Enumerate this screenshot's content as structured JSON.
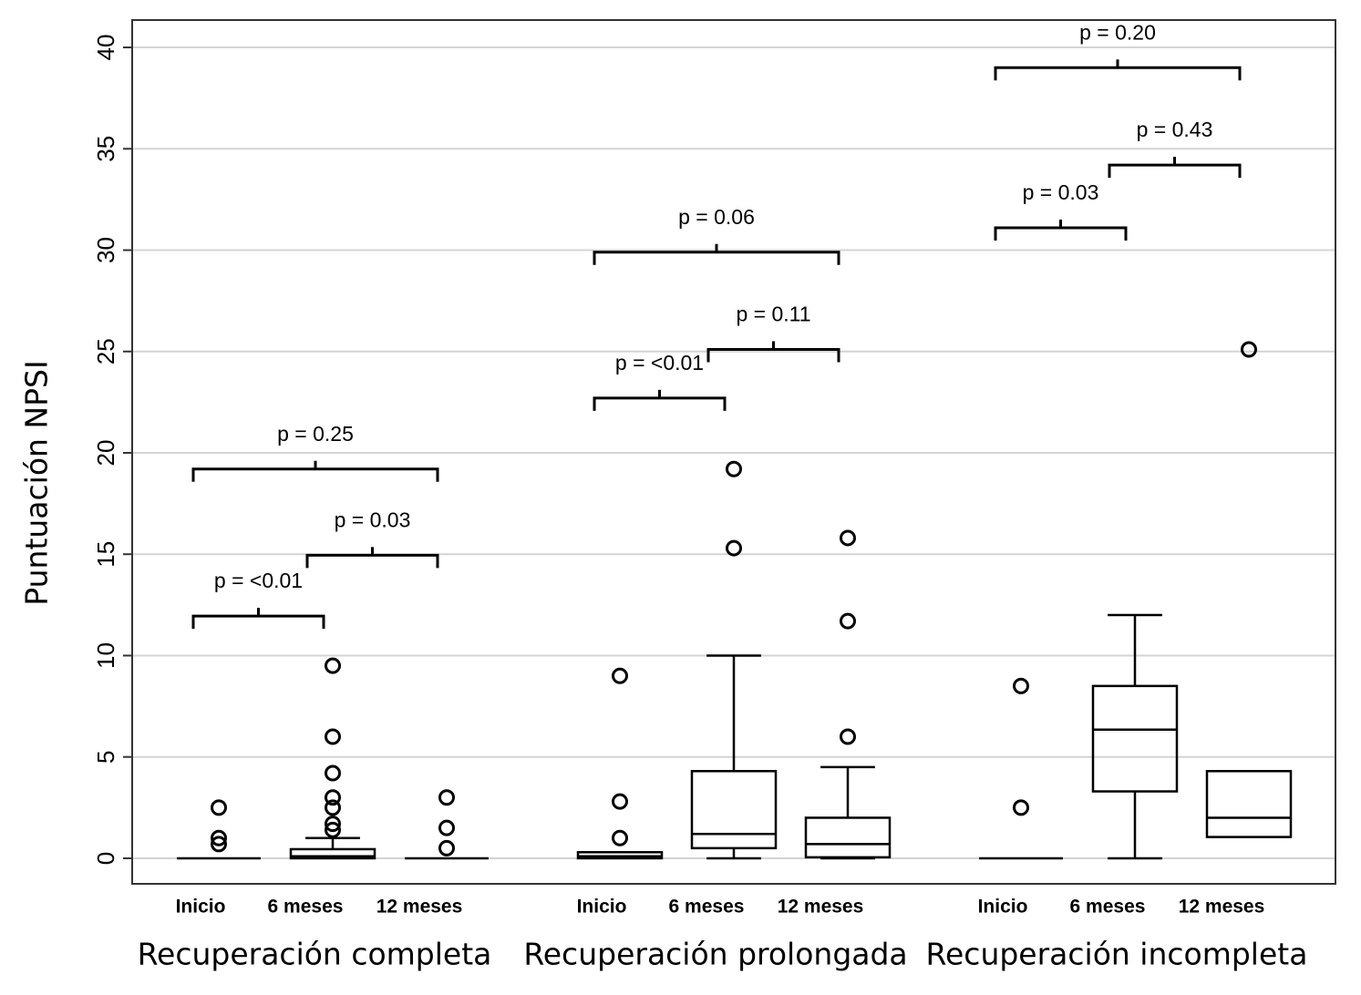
{
  "chart_data": {
    "type": "box",
    "y_label": "Puntuación NPSI",
    "ylim": [
      -1.26,
      41.35
    ],
    "yticks": [
      0,
      5,
      10,
      15,
      20,
      25,
      30,
      35,
      40
    ],
    "grid": true,
    "color": "#000000",
    "groups": [
      {
        "name": "Recuperación completa",
        "boxes": [
          {
            "name": "Inicio",
            "q1": 0,
            "median": 0,
            "q3": 0,
            "whisker_low": 0,
            "whisker_high": 0,
            "outliers": [
              2.5,
              1.0,
              0.7
            ]
          },
          {
            "name": "6 meses",
            "q1": 0,
            "median": 0.1,
            "q3": 0.45,
            "whisker_low": 0,
            "whisker_high": 1.0,
            "outliers": [
              9.5,
              6.0,
              4.2,
              3.0,
              2.5,
              1.7,
              1.4
            ]
          },
          {
            "name": "12 meses",
            "q1": 0,
            "median": 0,
            "q3": 0,
            "whisker_low": 0,
            "whisker_high": 0,
            "outliers": [
              3.0,
              1.5,
              0.5
            ]
          }
        ],
        "comparisons": [
          {
            "between": [
              "Inicio",
              "6 meses"
            ],
            "y": 11.95,
            "label": "p = <0.01"
          },
          {
            "between": [
              "6 meses",
              "12 meses"
            ],
            "y": 14.95,
            "label": "p = 0.03"
          },
          {
            "between": [
              "Inicio",
              "12 meses"
            ],
            "y": 19.2,
            "label": "p = 0.25"
          }
        ]
      },
      {
        "name": "Recuperación prolongada",
        "boxes": [
          {
            "name": "Inicio",
            "q1": 0,
            "median": 0.1,
            "q3": 0.3,
            "whisker_low": 0,
            "whisker_high": 0.3,
            "outliers": [
              9.0,
              2.8,
              1.0
            ]
          },
          {
            "name": "6 meses",
            "q1": 0.5,
            "median": 1.2,
            "q3": 4.3,
            "whisker_low": 0,
            "whisker_high": 10,
            "outliers": [
              19.2,
              15.3
            ]
          },
          {
            "name": "12 meses",
            "q1": 0.05,
            "median": 0.7,
            "q3": 2.0,
            "whisker_low": 0,
            "whisker_high": 4.5,
            "outliers": [
              15.8,
              11.7,
              6.0
            ]
          }
        ],
        "comparisons": [
          {
            "between": [
              "Inicio",
              "6 meses"
            ],
            "y": 22.7,
            "label": "p = <0.01"
          },
          {
            "between": [
              "6 meses",
              "12 meses"
            ],
            "y": 25.1,
            "label": "p = 0.11"
          },
          {
            "between": [
              "Inicio",
              "12 meses"
            ],
            "y": 29.9,
            "label": "p = 0.06"
          }
        ]
      },
      {
        "name": "Recuperación incompleta",
        "boxes": [
          {
            "name": "Inicio",
            "q1": 0,
            "median": 0,
            "q3": 0,
            "whisker_low": 0,
            "whisker_high": 0,
            "outliers": [
              8.5,
              2.5
            ]
          },
          {
            "name": "6 meses",
            "q1": 3.3,
            "median": 6.35,
            "q3": 8.5,
            "whisker_low": 0,
            "whisker_high": 12,
            "outliers": []
          },
          {
            "name": "12 meses",
            "q1": 1.05,
            "median": 2.0,
            "q3": 4.3,
            "whisker_low": 1.05,
            "whisker_high": 4.3,
            "outliers": [
              25.1
            ]
          }
        ],
        "comparisons": [
          {
            "between": [
              "Inicio",
              "6 meses"
            ],
            "y": 31.1,
            "label": "p = 0.03"
          },
          {
            "between": [
              "6 meses",
              "12 meses"
            ],
            "y": 34.2,
            "label": "p = 0.43"
          },
          {
            "between": [
              "Inicio",
              "12 meses"
            ],
            "y": 39.0,
            "label": "p = 0.20"
          }
        ]
      }
    ]
  }
}
